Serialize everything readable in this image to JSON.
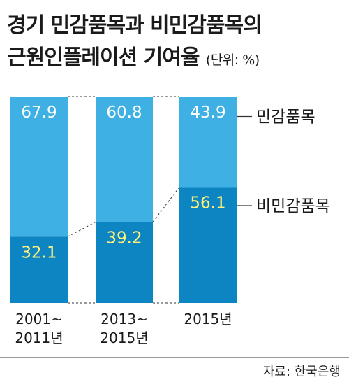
{
  "title_line1": "경기 민감품목과 비민감품목의",
  "title_line2": "근원인플레이션 기여율",
  "unit": "(단위: %)",
  "source": "자료: 한국은행",
  "colors": {
    "upper": "#3fb0e4",
    "lower": "#0d85c2",
    "upper_label": "#ffffff",
    "lower_label": "#fff27a",
    "leader": "#333333"
  },
  "chart_data": {
    "type": "bar",
    "stacked": true,
    "categories": [
      [
        "2001~",
        "2011년"
      ],
      [
        "2013~",
        "2015년"
      ],
      [
        "2015년"
      ]
    ],
    "series": [
      {
        "name": "비민감품목",
        "values": [
          32.1,
          39.2,
          56.1
        ],
        "position": "bottom"
      },
      {
        "name": "민감품목",
        "values": [
          67.9,
          60.8,
          43.9
        ],
        "position": "top"
      }
    ],
    "data_labels": {
      "민감품목": [
        "67.9",
        "60.8",
        "43.9"
      ],
      "비민감품목": [
        "32.1",
        "39.2",
        "56.1"
      ]
    },
    "ylim": [
      0,
      100
    ],
    "grid": false,
    "legend": "right"
  }
}
